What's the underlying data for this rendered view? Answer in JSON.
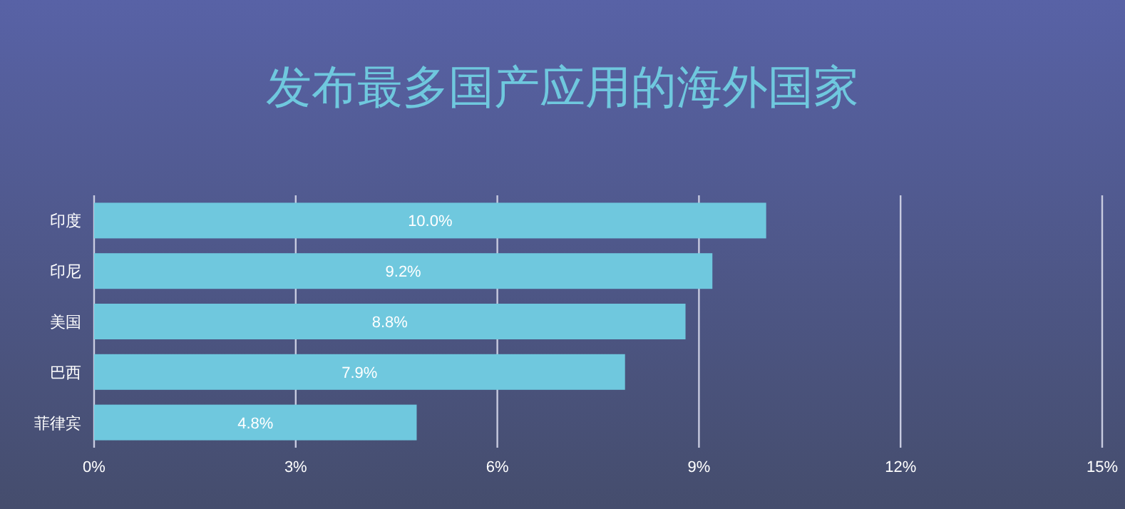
{
  "chart_data": {
    "type": "bar",
    "orientation": "horizontal",
    "title": "发布最多国产应用的海外国家",
    "categories": [
      "印度",
      "印尼",
      "美国",
      "巴西",
      "菲律宾"
    ],
    "values": [
      10.0,
      9.2,
      8.8,
      7.9,
      4.8
    ],
    "value_labels": [
      "10.0%",
      "9.2%",
      "8.8%",
      "7.9%",
      "4.8%"
    ],
    "color": "#6fc8de",
    "xlim": [
      0,
      15
    ],
    "xticks": [
      {
        "value": 0,
        "label": "0%"
      },
      {
        "value": 3,
        "label": "3%"
      },
      {
        "value": 6,
        "label": "6%"
      },
      {
        "value": 9,
        "label": "9%"
      },
      {
        "value": 12,
        "label": "12%"
      },
      {
        "value": 15,
        "label": "15%"
      }
    ],
    "grid": "x"
  }
}
